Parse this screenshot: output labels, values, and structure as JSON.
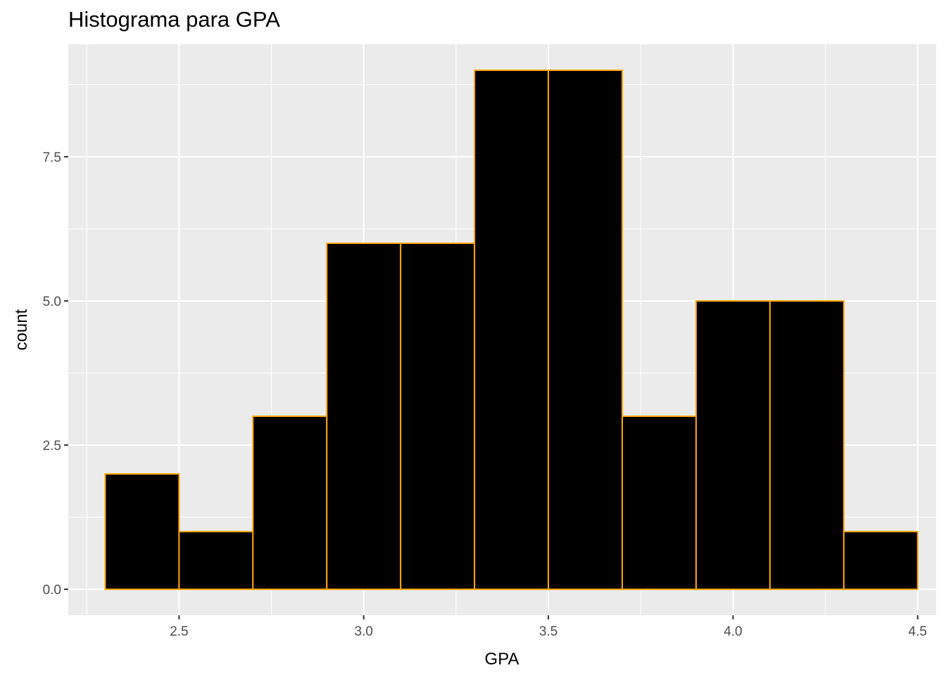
{
  "chart_data": {
    "type": "bar",
    "title": "Histograma para GPA",
    "xlabel": "GPA",
    "ylabel": "count",
    "bins": [
      {
        "x0": 2.3,
        "x1": 2.5,
        "count": 2
      },
      {
        "x0": 2.5,
        "x1": 2.7,
        "count": 1
      },
      {
        "x0": 2.7,
        "x1": 2.9,
        "count": 3
      },
      {
        "x0": 2.9,
        "x1": 3.1,
        "count": 6
      },
      {
        "x0": 3.1,
        "x1": 3.3,
        "count": 6
      },
      {
        "x0": 3.3,
        "x1": 3.5,
        "count": 9
      },
      {
        "x0": 3.5,
        "x1": 3.7,
        "count": 9
      },
      {
        "x0": 3.7,
        "x1": 3.9,
        "count": 3
      },
      {
        "x0": 3.9,
        "x1": 4.1,
        "count": 5
      },
      {
        "x0": 4.1,
        "x1": 4.3,
        "count": 5
      },
      {
        "x0": 4.3,
        "x1": 4.5,
        "count": 1
      }
    ],
    "xlim": [
      2.2,
      4.55
    ],
    "ylim": [
      -0.45,
      9.45
    ],
    "x_ticks": [
      2.5,
      3.0,
      3.5,
      4.0,
      4.5
    ],
    "x_tick_labels": [
      "2.5",
      "3.0",
      "3.5",
      "4.0",
      "4.5"
    ],
    "y_ticks": [
      0,
      2.5,
      5,
      7.5
    ],
    "y_tick_labels": [
      "0.0",
      "2.5",
      "5.0",
      "7.5"
    ],
    "grid": true,
    "colors": {
      "panel": "#ebebeb",
      "grid": "#ffffff",
      "bar_fill": "#000000",
      "bar_outline": "#ffa500",
      "tick_text": "#4d4d4d",
      "tick_mark": "#333333"
    }
  }
}
